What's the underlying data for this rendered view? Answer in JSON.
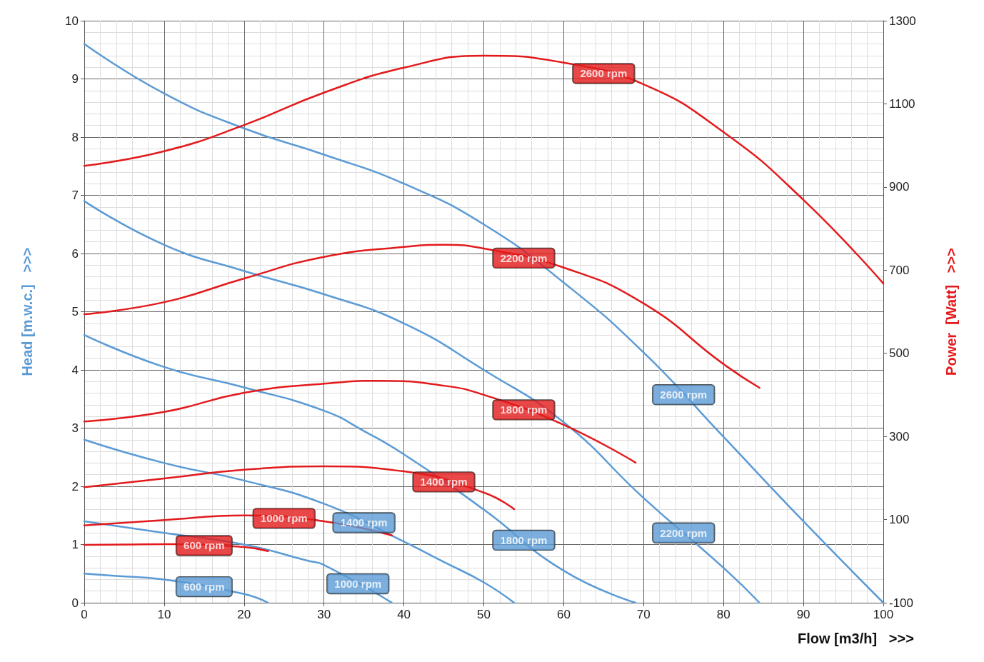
{
  "chart_data": {
    "type": "line",
    "xlabel": "Flow [m3/h]   >>>",
    "ylabel": "Head [m.w.c.]   >>>",
    "y2label": "Power  [Watt]   >>>",
    "xlim": [
      0,
      100
    ],
    "xticks": [
      0,
      10,
      20,
      30,
      40,
      50,
      60,
      70,
      80,
      90,
      100
    ],
    "ylim": [
      0,
      10
    ],
    "yticks": [
      0,
      1,
      2,
      3,
      4,
      5,
      6,
      7,
      8,
      9,
      10
    ],
    "y2lim": [
      -100,
      1300
    ],
    "y2ticks": [
      -100,
      100,
      300,
      500,
      700,
      900,
      1100,
      1300
    ],
    "grid": true,
    "marker": "none",
    "line_style": "solid",
    "series": [
      {
        "name": "2600 rpm",
        "color": "#5b9bd5",
        "x": [
          0,
          10,
          20,
          30,
          40,
          50,
          60,
          70,
          80,
          90,
          100
        ],
        "values": [
          9.6,
          8.75,
          8.15,
          7.7,
          7.2,
          6.5,
          5.5,
          4.3,
          2.85,
          1.4,
          0
        ]
      },
      {
        "name": "2200 rpm",
        "color": "#5b9bd5",
        "x": [
          0,
          10,
          20,
          30,
          40,
          50,
          60,
          70,
          80,
          84.5
        ],
        "values": [
          6.9,
          6.15,
          5.7,
          5.3,
          4.8,
          4.0,
          3.1,
          1.8,
          0.6,
          0
        ]
      },
      {
        "name": "1800 rpm",
        "color": "#5b9bd5",
        "x": [
          0,
          10,
          20,
          30,
          35,
          40,
          50,
          60,
          69
        ],
        "values": [
          4.6,
          4.05,
          3.7,
          3.3,
          2.95,
          2.55,
          1.6,
          0.55,
          0
        ]
      },
      {
        "name": "1400 rpm",
        "color": "#5b9bd5",
        "x": [
          0,
          10,
          20,
          30,
          40,
          45,
          50,
          53.8
        ],
        "values": [
          2.8,
          2.4,
          2.1,
          1.7,
          1.05,
          0.7,
          0.35,
          0
        ]
      },
      {
        "name": "1000 rpm",
        "color": "#5b9bd5",
        "x": [
          0,
          10,
          20,
          28,
          30,
          38.5
        ],
        "values": [
          1.4,
          1.2,
          1.0,
          0.72,
          0.65,
          0
        ]
      },
      {
        "name": "600 rpm",
        "color": "#5b9bd5",
        "x": [
          0,
          4,
          10,
          20,
          23
        ],
        "values": [
          0.5,
          0.46,
          0.4,
          0.15,
          0
        ]
      },
      {
        "name": "2600 rpm",
        "color": "#e31a1c",
        "axis": "y2",
        "x": [
          0,
          10,
          20,
          30,
          40,
          50,
          60,
          70,
          80,
          90,
          100
        ],
        "values": [
          951,
          986,
          1049,
          1127,
          1187,
          1216,
          1199,
          1147,
          1032,
          869,
          668
        ]
      },
      {
        "name": "2200 rpm",
        "color": "#e31a1c",
        "axis": "y2",
        "x": [
          0,
          10,
          20,
          30,
          40,
          45,
          50,
          60,
          70,
          80,
          84.5
        ],
        "values": [
          594,
          623,
          680,
          732,
          756,
          761,
          752,
          706,
          620,
          474,
          417
        ]
      },
      {
        "name": "1800 rpm",
        "color": "#e31a1c",
        "axis": "y2",
        "x": [
          0,
          10,
          20,
          30,
          37,
          45,
          50,
          60,
          69
        ],
        "values": [
          336,
          359,
          405,
          427,
          434,
          422,
          400,
          328,
          237
        ]
      },
      {
        "name": "1400 rpm",
        "color": "#e31a1c",
        "axis": "y2",
        "x": [
          0,
          10,
          20,
          30,
          40,
          50,
          53.8
        ],
        "values": [
          178,
          199,
          220,
          228,
          216,
          165,
          125
        ]
      },
      {
        "name": "1000 rpm",
        "color": "#e31a1c",
        "axis": "y2",
        "x": [
          0,
          10,
          20,
          30,
          38.5
        ],
        "values": [
          86,
          99,
          110,
          96,
          62
        ]
      },
      {
        "name": "600 rpm",
        "color": "#e31a1c",
        "axis": "y2",
        "x": [
          0,
          5,
          10,
          20,
          23
        ],
        "values": [
          39,
          40,
          41,
          34,
          24
        ]
      }
    ]
  }
}
